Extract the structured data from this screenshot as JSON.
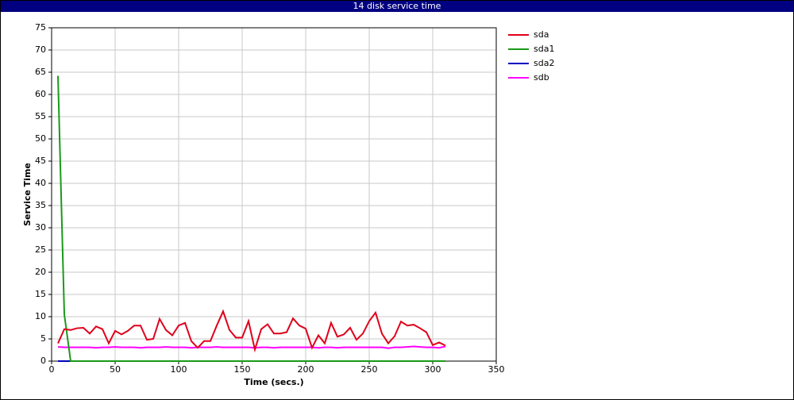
{
  "chart_data": {
    "type": "line",
    "title": "14 disk service time",
    "x_label": "Time (secs.)",
    "y_label": "Service Time",
    "x": [
      5,
      10,
      15,
      20,
      25,
      30,
      35,
      40,
      45,
      50,
      55,
      60,
      65,
      70,
      75,
      80,
      85,
      90,
      95,
      100,
      105,
      110,
      115,
      120,
      125,
      130,
      135,
      140,
      145,
      150,
      155,
      160,
      165,
      170,
      175,
      180,
      185,
      190,
      195,
      200,
      205,
      210,
      215,
      220,
      225,
      230,
      235,
      240,
      245,
      250,
      255,
      260,
      265,
      270,
      275,
      280,
      285,
      290,
      295,
      300,
      305,
      310
    ],
    "series": [
      {
        "name": "sda",
        "color": "#e0001b",
        "values": [
          4,
          7.2,
          7,
          7.4,
          7.5,
          6.2,
          7.8,
          7.2,
          4,
          6.8,
          6,
          6.8,
          8,
          8,
          4.8,
          5,
          9.5,
          7,
          5.8,
          8,
          8.6,
          4.5,
          3,
          4.5,
          4.5,
          8,
          11.2,
          7,
          5.3,
          5.3,
          9,
          2.6,
          7.2,
          8.3,
          6.2,
          6.2,
          6.5,
          9.6,
          8,
          7.3,
          3,
          5.8,
          4,
          8.6,
          5.5,
          6,
          7.5,
          4.8,
          6.2,
          9,
          10.9,
          6.2,
          4,
          5.6,
          8.9,
          8,
          8.2,
          7.4,
          6.5,
          3.6,
          4.2,
          3.5
        ]
      },
      {
        "name": "sda1",
        "color": "#1a9a1a",
        "values": [
          64.2,
          10.5,
          0,
          0,
          0,
          0,
          0,
          0,
          0,
          0,
          0,
          0,
          0,
          0,
          0,
          0,
          0,
          0,
          0,
          0,
          0,
          0,
          0,
          0,
          0,
          0,
          0,
          0,
          0,
          0,
          0,
          0,
          0,
          0,
          0,
          0,
          0,
          0,
          0,
          0,
          0,
          0,
          0,
          0,
          0,
          0,
          0,
          0,
          0,
          0,
          0,
          0,
          0,
          0,
          0,
          0,
          0,
          0,
          0,
          0,
          0,
          0
        ]
      },
      {
        "name": "sda2",
        "color": "#0000c0",
        "values": [
          0,
          0,
          0,
          0,
          0,
          0,
          0,
          0,
          0,
          0,
          0,
          0,
          0,
          0,
          0,
          0,
          0,
          0,
          0,
          0,
          0,
          0,
          0,
          0,
          0,
          0,
          0,
          0,
          0,
          0,
          0,
          0,
          0,
          0,
          0,
          0,
          0,
          0,
          0,
          0,
          0,
          0,
          0,
          0,
          0,
          0,
          0,
          0,
          0,
          0,
          0,
          0,
          0,
          0,
          0,
          0,
          0,
          0,
          0,
          0,
          0,
          0
        ]
      },
      {
        "name": "sdb",
        "color": "#ff00ff",
        "values": [
          3.2,
          3.1,
          3.1,
          3.1,
          3.1,
          3.1,
          3.0,
          3.1,
          3.1,
          3.2,
          3.1,
          3.1,
          3.1,
          3.0,
          3.1,
          3.1,
          3.1,
          3.2,
          3.1,
          3.1,
          3.1,
          3.0,
          3.1,
          3.1,
          3.1,
          3.2,
          3.1,
          3.1,
          3.1,
          3.1,
          3.1,
          3.0,
          3.1,
          3.1,
          3.0,
          3.1,
          3.1,
          3.1,
          3.1,
          3.1,
          3.1,
          3.0,
          3.1,
          3.1,
          3.0,
          3.1,
          3.1,
          3.1,
          3.1,
          3.1,
          3.1,
          3.1,
          2.9,
          3.1,
          3.1,
          3.2,
          3.3,
          3.2,
          3.1,
          3.1,
          3.0,
          3.3
        ]
      }
    ],
    "xlim": [
      0,
      350
    ],
    "xticks": [
      0,
      50,
      100,
      150,
      200,
      250,
      300,
      350
    ],
    "ylim": [
      0,
      75
    ],
    "yticks": [
      0,
      5,
      10,
      15,
      20,
      25,
      30,
      35,
      40,
      45,
      50,
      55,
      60,
      65,
      70,
      75
    ],
    "grid": true,
    "legend": "right"
  }
}
